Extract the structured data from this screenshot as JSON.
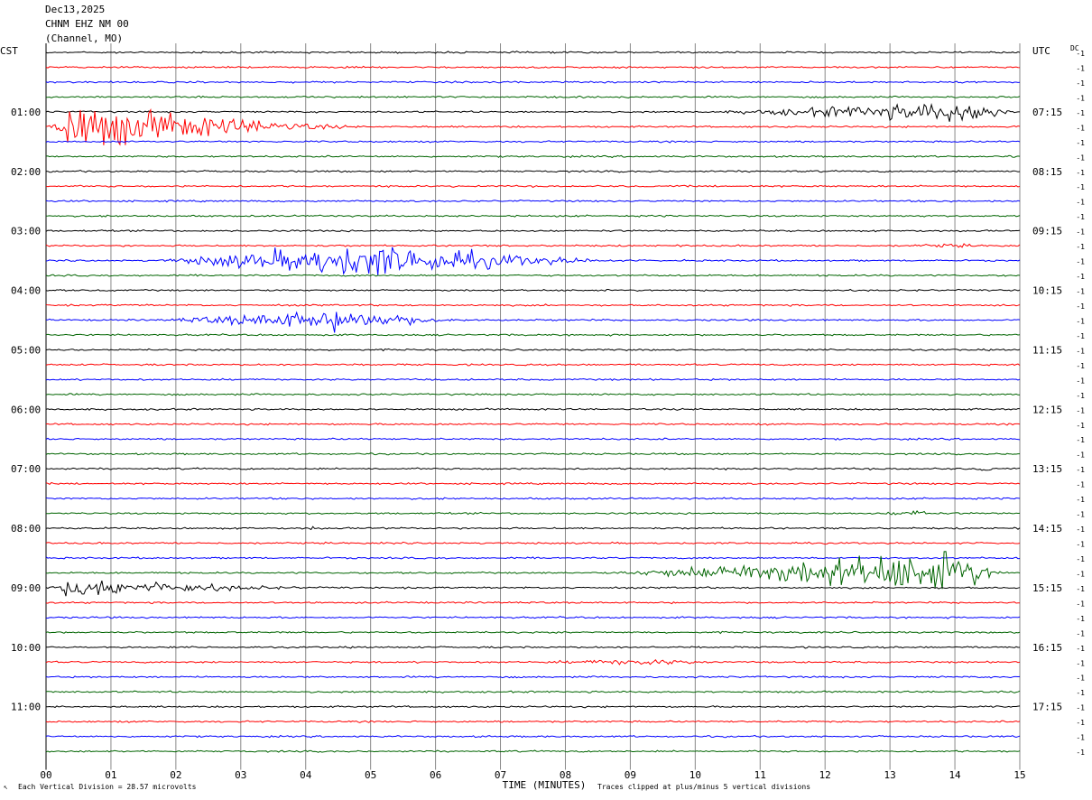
{
  "header": {
    "date": "Dec13,2025",
    "station": "CHNM EHZ NM 00",
    "location": "(Channel, MO)"
  },
  "left_tz": "CST",
  "right_tz": "UTC",
  "dc_label": "DC",
  "colors": [
    "#000000",
    "#ff0000",
    "#0000ff",
    "#006400"
  ],
  "footer": {
    "scale_note": "Each Vertical Division =   28.57 microvolts",
    "clip_note": "Traces clipped at plus/minus 5 vertical divisions"
  },
  "chart_data": {
    "type": "line",
    "xlabel": "TIME (MINUTES)",
    "x_ticks": [
      "00",
      "01",
      "02",
      "03",
      "04",
      "05",
      "06",
      "07",
      "08",
      "09",
      "10",
      "11",
      "12",
      "13",
      "14",
      "15"
    ],
    "xlim": [
      0,
      15
    ],
    "trace_count": 48,
    "trace_minutes": 15,
    "left_hour_labels": [
      "01:00",
      "02:00",
      "03:00",
      "04:00",
      "05:00",
      "06:00",
      "07:00",
      "08:00",
      "09:00",
      "10:00",
      "11:00"
    ],
    "right_hour_labels": [
      "07:15",
      "08:15",
      "09:15",
      "10:15",
      "11:15",
      "12:15",
      "13:15",
      "14:15",
      "15:15",
      "16:15",
      "17:15"
    ],
    "dc_offset_label": "-1",
    "events": [
      {
        "trace": 4,
        "start_min": 10.0,
        "peak_min": 14.5,
        "end_min": 15.0,
        "amplitude": 10
      },
      {
        "trace": 5,
        "start_min": 0.0,
        "peak_min": 0.4,
        "end_min": 5.5,
        "amplitude": 22
      },
      {
        "trace": 13,
        "start_min": 12.5,
        "peak_min": 14.0,
        "end_min": 15.0,
        "amplitude": 2
      },
      {
        "trace": 14,
        "start_min": 1.5,
        "peak_min": 5.0,
        "end_min": 9.5,
        "amplitude": 16
      },
      {
        "trace": 18,
        "start_min": 1.5,
        "peak_min": 4.6,
        "end_min": 7.0,
        "amplitude": 10
      },
      {
        "trace": 24,
        "start_min": 1.6,
        "peak_min": 1.8,
        "end_min": 2.0,
        "amplitude": 2
      },
      {
        "trace": 28,
        "start_min": 14.2,
        "peak_min": 14.5,
        "end_min": 14.8,
        "amplitude": 3
      },
      {
        "trace": 30,
        "start_min": 3.2,
        "peak_min": 3.25,
        "end_min": 3.3,
        "amplitude": 3
      },
      {
        "trace": 30,
        "start_min": 12.0,
        "peak_min": 12.1,
        "end_min": 12.3,
        "amplitude": 4
      },
      {
        "trace": 31,
        "start_min": 12.5,
        "peak_min": 13.5,
        "end_min": 14.0,
        "amplitude": 3
      },
      {
        "trace": 32,
        "start_min": 4.0,
        "peak_min": 4.1,
        "end_min": 4.2,
        "amplitude": 3
      },
      {
        "trace": 35,
        "start_min": 8.5,
        "peak_min": 14.0,
        "end_min": 15.0,
        "amplitude": 20
      },
      {
        "trace": 36,
        "start_min": 0.0,
        "peak_min": 0.4,
        "end_min": 5.0,
        "amplitude": 9
      },
      {
        "trace": 41,
        "start_min": 7.0,
        "peak_min": 9.2,
        "end_min": 11.5,
        "amplitude": 3
      }
    ]
  }
}
